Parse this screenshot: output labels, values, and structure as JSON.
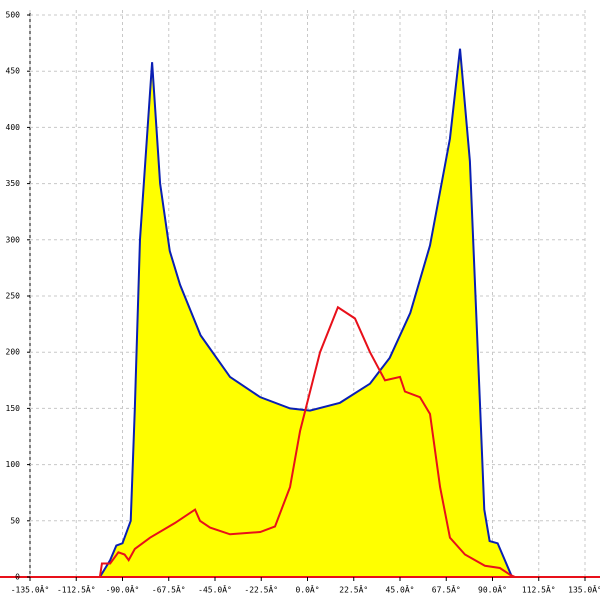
{
  "chart_data": {
    "type": "area",
    "xlim": [
      -135,
      135
    ],
    "ylim": [
      0,
      500
    ],
    "xticks": [
      {
        "value": -135,
        "label": "-135.0Â°"
      },
      {
        "value": -112.5,
        "label": "-112.5Â°"
      },
      {
        "value": -90,
        "label": "-90.0Â°"
      },
      {
        "value": -67.5,
        "label": "-67.5Â°"
      },
      {
        "value": -45,
        "label": "-45.0Â°"
      },
      {
        "value": -22.5,
        "label": "-22.5Â°"
      },
      {
        "value": 0,
        "label": "0.0Â°"
      },
      {
        "value": 22.5,
        "label": "22.5Â°"
      },
      {
        "value": 45,
        "label": "45.0Â°"
      },
      {
        "value": 67.5,
        "label": "67.5Â°"
      },
      {
        "value": 90,
        "label": "90.0Â°"
      },
      {
        "value": 112.5,
        "label": "112.5Â°"
      },
      {
        "value": 135,
        "label": "135.0Â°"
      }
    ],
    "yticks": [
      0,
      50,
      100,
      150,
      200,
      250,
      300,
      350,
      400,
      450,
      500
    ],
    "grid": true,
    "series": [
      {
        "color": "#0a1fb4",
        "fill": "#ffff00",
        "x": [
          -101,
          -96,
          -93,
          -90,
          -88,
          -86,
          -84,
          -81.5,
          -75.6,
          -71.7,
          -67,
          -62,
          -52,
          -37.7,
          -23,
          -8.5,
          1.2,
          15.8,
          30.4,
          40,
          50,
          59.6,
          69.3,
          74.2,
          79,
          84,
          86,
          88.6,
          92.5,
          96,
          99.5
        ],
        "values": [
          0,
          15,
          28,
          30,
          40,
          50,
          150,
          300,
          458,
          350,
          290,
          260,
          215,
          178,
          160,
          150,
          148,
          155,
          172,
          195,
          235,
          295,
          390,
          470,
          370,
          150,
          60,
          32,
          30,
          15,
          0
        ]
      },
      {
        "color": "#e8101a",
        "x": [
          -101,
          -100,
          -96,
          -92,
          -89,
          -87,
          -84,
          -76.6,
          -64.5,
          -54.7,
          -52.3,
          -47.4,
          -37.7,
          -23,
          -15.8,
          -8.5,
          -3.6,
          6.1,
          14.8,
          23.1,
          30.4,
          37.7,
          45,
          47.4,
          54.7,
          59.6,
          64.5,
          69.3,
          76.6,
          86.3,
          93.6,
          98.5,
          101
        ],
        "values": [
          0,
          12,
          12,
          22,
          20,
          15,
          25,
          35,
          48,
          60,
          50,
          44,
          38,
          40,
          45,
          80,
          130,
          200,
          240,
          230,
          200,
          175,
          178,
          165,
          160,
          145,
          80,
          35,
          20,
          10,
          8,
          2,
          0
        ]
      }
    ]
  }
}
